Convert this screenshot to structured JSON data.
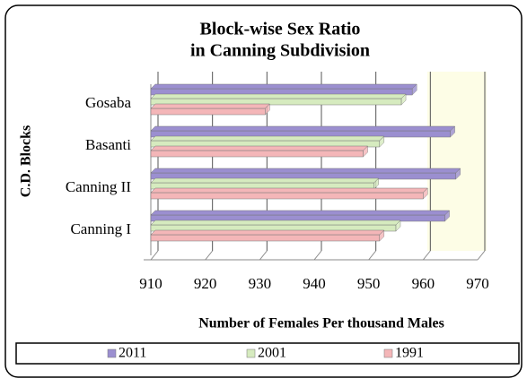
{
  "chart_data": {
    "type": "bar",
    "orientation": "horizontal",
    "title": [
      "Block-wise Sex Ratio",
      "in Canning Subdivision"
    ],
    "xlabel": "Number of Females Per thousand Males",
    "ylabel": "C.D. Blocks",
    "categories": [
      "Canning I",
      "Canning II",
      "Basanti",
      "Gosaba"
    ],
    "series": [
      {
        "name": "2011",
        "color": "#9b8fd0",
        "values": [
          964,
          966,
          965,
          958
        ]
      },
      {
        "name": "2001",
        "color": "#d6ebbf",
        "values": [
          955,
          951,
          952,
          956
        ]
      },
      {
        "name": "1991",
        "color": "#f4b6b8",
        "values": [
          952,
          960,
          949,
          931
        ]
      }
    ],
    "xlim": [
      910,
      970
    ],
    "xticks": [
      910,
      920,
      930,
      940,
      950,
      960,
      970
    ],
    "grid": true
  }
}
